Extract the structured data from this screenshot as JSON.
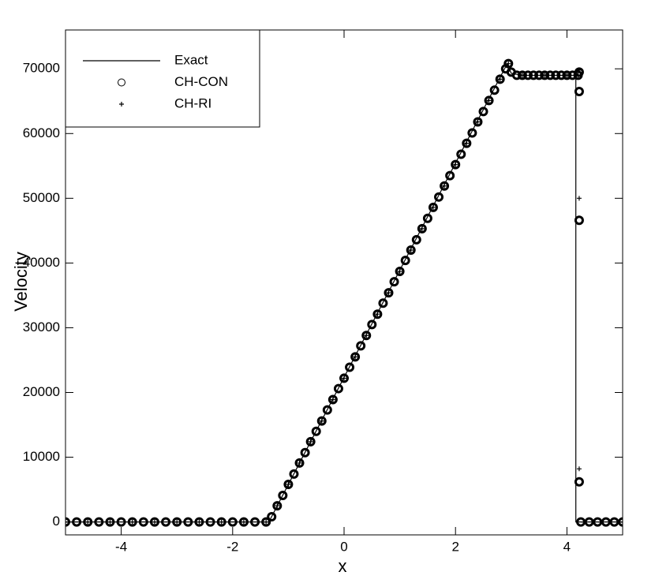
{
  "chart_data": {
    "type": "line",
    "x_label": "x",
    "y_label": "Velocity",
    "xlim": [
      -5,
      5
    ],
    "ylim": [
      -2000,
      76000
    ],
    "xticks": [
      -4,
      -2,
      0,
      2,
      4
    ],
    "yticks": [
      0,
      10000,
      20000,
      30000,
      40000,
      50000,
      60000,
      70000
    ],
    "legend": "upper left",
    "series": [
      {
        "name": "Exact",
        "color": "#000000",
        "marker": "line",
        "x": [
          -5,
          -1.35,
          2.88,
          2.93,
          3.0,
          3.2,
          4.16,
          4.16,
          5
        ],
        "values": [
          0,
          0,
          70000,
          70800,
          69300,
          69000,
          69000,
          0,
          0
        ]
      },
      {
        "name": "CH-CON",
        "color": "#000000",
        "marker": "circle",
        "x": [
          -5,
          -4.8,
          -4.6,
          -4.4,
          -4.2,
          -4,
          -3.8,
          -3.6,
          -3.4,
          -3.2,
          -3,
          -2.8,
          -2.6,
          -2.4,
          -2.2,
          -2,
          -1.8,
          -1.6,
          -1.4,
          -1.3,
          -1.2,
          -1.1,
          -1,
          -0.9,
          -0.8,
          -0.7,
          -0.6,
          -0.5,
          -0.4,
          -0.3,
          -0.2,
          -0.1,
          0,
          0.1,
          0.2,
          0.3,
          0.4,
          0.5,
          0.6,
          0.7,
          0.8,
          0.9,
          1,
          1.1,
          1.2,
          1.3,
          1.4,
          1.5,
          1.6,
          1.7,
          1.8,
          1.9,
          2,
          2.1,
          2.2,
          2.3,
          2.4,
          2.5,
          2.6,
          2.7,
          2.8,
          2.9,
          2.95,
          3,
          3.1,
          3.2,
          3.3,
          3.4,
          3.5,
          3.6,
          3.7,
          3.8,
          3.9,
          4,
          4.1,
          4.2,
          4.22,
          4.22,
          4.22,
          4.22,
          4.25,
          4.4,
          4.55,
          4.7,
          4.85,
          5
        ],
        "values": [
          0,
          0,
          0,
          0,
          0,
          0,
          0,
          0,
          0,
          0,
          0,
          0,
          0,
          0,
          0,
          0,
          0,
          0,
          0,
          800,
          2500,
          4100,
          5800,
          7400,
          9100,
          10700,
          12400,
          14000,
          15600,
          17300,
          18900,
          20600,
          22200,
          23900,
          25500,
          27200,
          28800,
          30500,
          32100,
          33800,
          35400,
          37100,
          38700,
          40400,
          42000,
          43600,
          45300,
          46900,
          48600,
          50200,
          51900,
          53500,
          55200,
          56800,
          58500,
          60100,
          61800,
          63400,
          65100,
          66700,
          68400,
          70000,
          70800,
          69500,
          69000,
          69000,
          69000,
          69000,
          69000,
          69000,
          69000,
          69000,
          69000,
          69000,
          69000,
          69000,
          69500,
          66500,
          46600,
          6200,
          0,
          0,
          0,
          0,
          0,
          0
        ]
      },
      {
        "name": "CH-RI",
        "color": "#000000",
        "marker": "plus",
        "x": [
          -5,
          -4.6,
          -4.2,
          -3.8,
          -3.4,
          -3,
          -2.6,
          -2.2,
          -1.8,
          -1.4,
          -1.2,
          -1,
          -0.8,
          -0.6,
          -0.4,
          -0.2,
          0,
          0.2,
          0.4,
          0.6,
          0.8,
          1,
          1.2,
          1.4,
          1.6,
          1.8,
          2,
          2.2,
          2.4,
          2.6,
          2.8,
          2.95,
          3.2,
          3.6,
          4,
          4.2,
          4.22,
          4.22,
          4.22,
          4.3,
          4.6,
          5
        ],
        "values": [
          0,
          0,
          0,
          0,
          0,
          0,
          0,
          0,
          0,
          0,
          2500,
          5800,
          9100,
          12400,
          15600,
          18900,
          22200,
          25500,
          28800,
          32100,
          35400,
          38700,
          42000,
          45300,
          48600,
          51900,
          55200,
          58500,
          61800,
          65100,
          68400,
          70800,
          69000,
          69000,
          69000,
          69000,
          69800,
          50000,
          8200,
          0,
          0,
          0
        ]
      }
    ]
  }
}
